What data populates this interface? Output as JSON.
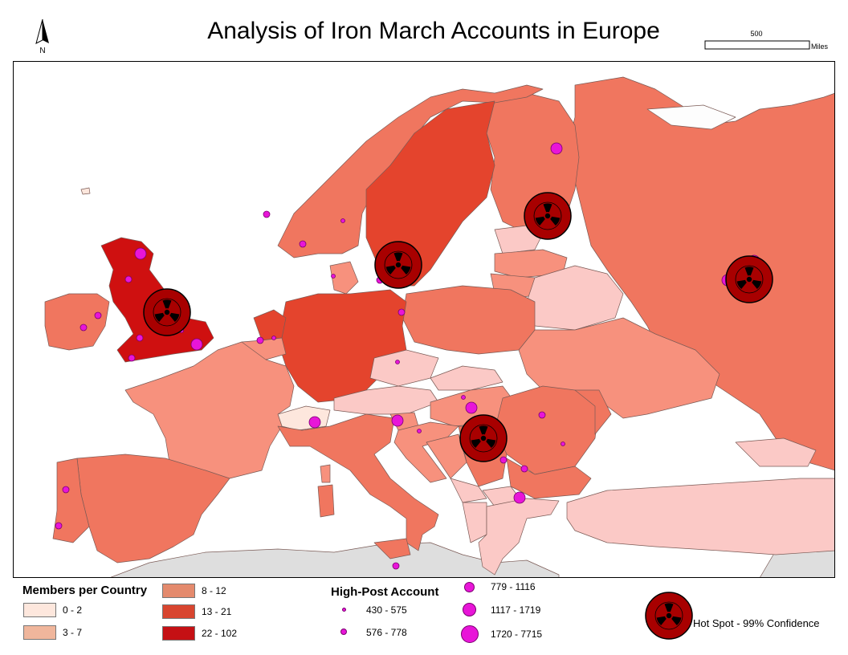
{
  "title": "Analysis of Iron March Accounts in Europe",
  "north_arrow": {
    "label": "N",
    "icon": "north-arrow-icon"
  },
  "scale_bar": {
    "distance": "500",
    "unit": "Miles"
  },
  "colors": {
    "water": "#ffffff",
    "nodata": "#dedede",
    "border": "#7a5a55",
    "class_0_2": "#fde7dd",
    "class_3_7": "#f0b69c",
    "class_pink": "#fbc9c6",
    "class_8_12": "#f7917d",
    "class_8_12_b": "#f0765f",
    "class_13_21": "#e4442d",
    "class_22_102": "#cf1010",
    "account_dot": "#e815d8",
    "hotspot_fill": "#a80000",
    "hotspot_symbol": "#000000"
  },
  "legend": {
    "members": {
      "title": "Members per Country",
      "classes": [
        {
          "label": "0 - 2",
          "color": "#fde7dd"
        },
        {
          "label": "3 - 7",
          "color": "#f0b69c"
        },
        {
          "label": "8 - 12",
          "color": "#e48a6d"
        },
        {
          "label": "13 - 21",
          "color": "#d8452f"
        },
        {
          "label": "22 - 102",
          "color": "#c51014"
        }
      ]
    },
    "accounts": {
      "title": "High-Post Account",
      "classes": [
        {
          "label": "430 - 575",
          "size": 5
        },
        {
          "label": "576 - 778",
          "size": 8
        },
        {
          "label": "779 - 1116",
          "size": 12
        },
        {
          "label": "1117 - 1719",
          "size": 16
        },
        {
          "label": "1720 - 7715",
          "size": 21
        }
      ]
    },
    "hotspot": {
      "label": "Hot Spot - 99% Confidence",
      "icon": "radiation-hotspot-icon"
    }
  },
  "hotspots": [
    "United Kingdom",
    "Sweden",
    "Finland / St. Petersburg",
    "Russia (Moscow)",
    "Serbia"
  ]
}
